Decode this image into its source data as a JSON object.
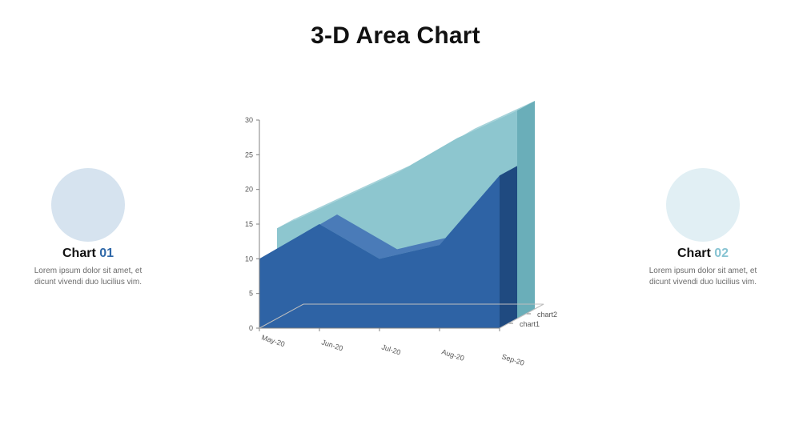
{
  "title": "3-D Area Chart",
  "badges": {
    "left": {
      "label_prefix": "Chart ",
      "label_num": "01",
      "num_color": "#2f68a8",
      "circle_color": "#d6e3ef",
      "desc": "Lorem ipsum dolor sit amet, et dicunt vivendi duo lucilius vim."
    },
    "right": {
      "label_prefix": "Chart ",
      "label_num": "02",
      "num_color": "#86c3d2",
      "circle_color": "#e1eff4",
      "desc": "Lorem ipsum dolor sit amet, et dicunt vivendi duo lucilius vim."
    }
  },
  "chart": {
    "type": "3d-area",
    "background_color": "#ffffff",
    "axis": {
      "y": {
        "min": 0,
        "max": 30,
        "step": 5,
        "label_fontsize": 9,
        "label_color": "#555555"
      },
      "x_categories": [
        "May-20",
        "Jun-20",
        "Jul-20",
        "Aug-20",
        "Sep-20"
      ],
      "z_categories": [
        "chart1",
        "chart2"
      ],
      "x_label_fontsize": 9,
      "z_label_fontsize": 9,
      "grid_color": "#d0d0d0",
      "axis_line_color": "#808080"
    },
    "series": [
      {
        "name": "chart1",
        "values": [
          10,
          15,
          10,
          12,
          22
        ],
        "face_color": "#2e63a5",
        "top_color": "#4a7bb8",
        "side_color": "#1f4a80"
      },
      {
        "name": "chart2",
        "values": [
          13,
          17,
          21,
          26,
          30
        ],
        "face_color": "#8dc6cf",
        "top_color": "#a5d2d9",
        "side_color": "#6aaeb9"
      }
    ],
    "floor_color": "#ffffff",
    "floor_edge_color": "#bfbfbf",
    "depth_offset": {
      "dx": 22,
      "dy": -12
    }
  }
}
